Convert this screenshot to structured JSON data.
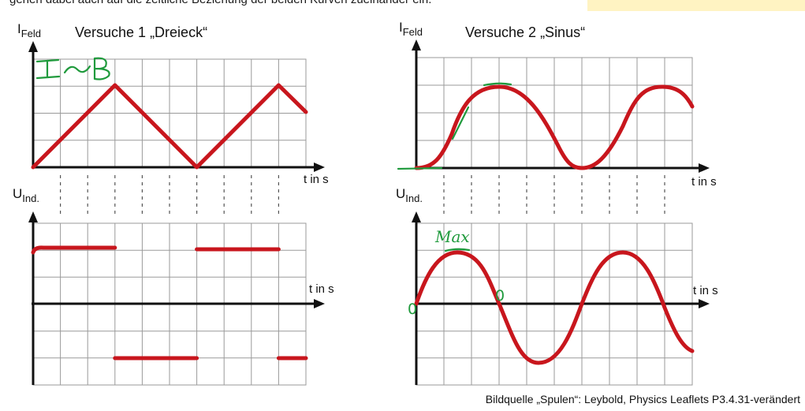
{
  "top_cut_text": "gehen dabei auch auf die zeitliche Beziehung der beiden Kurven zueinander ein.",
  "panels": [
    {
      "title": "Versuche 1 „Dreieck“",
      "y_label_top_main": "I",
      "y_label_top_sub": "Feld",
      "y_label_bottom_main": "U",
      "y_label_bottom_sub": "Ind.",
      "x_label_top": "t in s",
      "x_label_bottom": "t in s",
      "handwritten_top": "I ~ B"
    },
    {
      "title": "Versuche 2 „Sinus“",
      "y_label_top_main": "I",
      "y_label_top_sub": "Feld",
      "y_label_bottom_main": "U",
      "y_label_bottom_sub": "Ind.",
      "x_label_top": "t in s",
      "x_label_bottom": "t in s",
      "handwritten_max": "Max",
      "handwritten_zero_a": "0",
      "handwritten_zero_b": "0"
    }
  ],
  "source": "Bildquelle „Spulen“: Leybold, Physics Leaflets P3.4.31-verändert",
  "colors": {
    "curve": "#c8161d",
    "annotation_ink": "#1f9a3c",
    "highlight": "#fff3c2"
  }
}
